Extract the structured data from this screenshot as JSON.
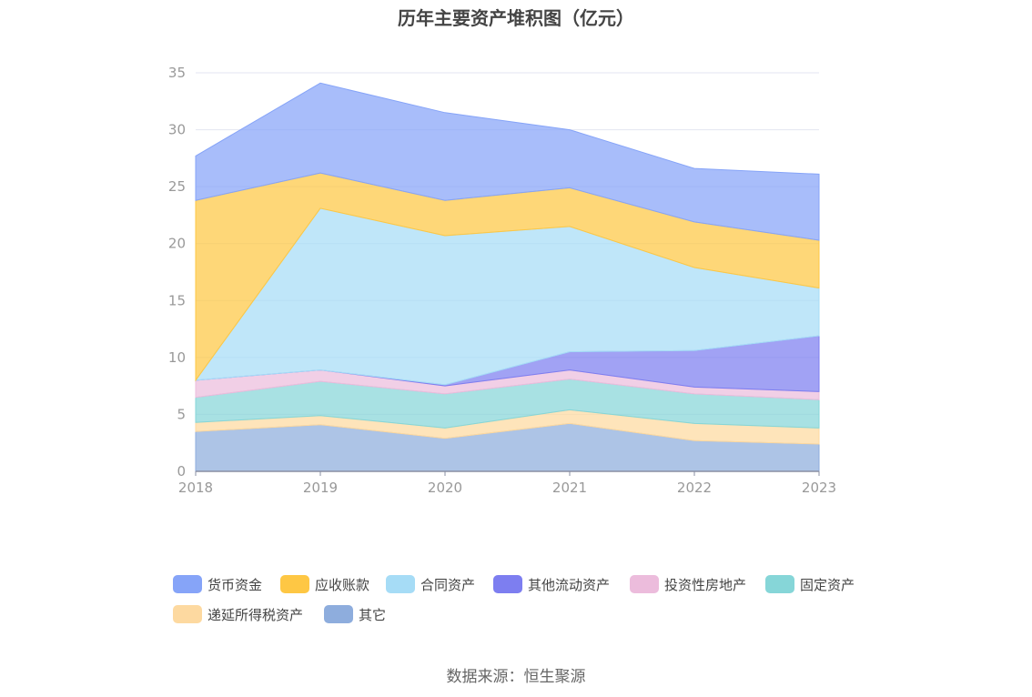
{
  "title": "历年主要资产堆积图（亿元）",
  "source": "数据来源：恒生聚源",
  "chart_data": {
    "type": "area",
    "stacked": true,
    "x": [
      "2018",
      "2019",
      "2020",
      "2021",
      "2022",
      "2023"
    ],
    "ylim": [
      0,
      35
    ],
    "yticks": [
      "0",
      "5",
      "10",
      "15",
      "20",
      "25",
      "30",
      "35"
    ],
    "grid": true,
    "legend_position": "bottom",
    "series": [
      {
        "name": "其它",
        "color": "#8eaddd",
        "values": [
          3.5,
          4.1,
          2.9,
          4.2,
          2.7,
          2.4
        ]
      },
      {
        "name": "递延所得税资产",
        "color": "#fdd9a0",
        "values": [
          0.8,
          0.8,
          0.9,
          1.2,
          1.5,
          1.4
        ]
      },
      {
        "name": "固定资产",
        "color": "#86d6d8",
        "values": [
          2.2,
          3.0,
          3.0,
          2.7,
          2.6,
          2.5
        ]
      },
      {
        "name": "投资性房地产",
        "color": "#ecbcdc",
        "values": [
          1.5,
          1.0,
          0.7,
          0.8,
          0.6,
          0.7
        ]
      },
      {
        "name": "其他流动资产",
        "color": "#7d7ef0",
        "values": [
          0.0,
          0.0,
          0.1,
          1.6,
          3.2,
          4.9
        ]
      },
      {
        "name": "合同资产",
        "color": "#a6dcf6",
        "values": [
          0.0,
          14.2,
          13.1,
          11.0,
          7.3,
          4.2
        ]
      },
      {
        "name": "应收账款",
        "color": "#fec744",
        "values": [
          15.8,
          3.1,
          3.1,
          3.4,
          4.0,
          4.2
        ]
      },
      {
        "name": "货币资金",
        "color": "#86a4f8",
        "values": [
          3.9,
          7.9,
          7.7,
          5.1,
          4.7,
          5.8
        ]
      }
    ],
    "legend_order": [
      "货币资金",
      "应收账款",
      "合同资产",
      "其他流动资产",
      "投资性房地产",
      "固定资产",
      "递延所得税资产",
      "其它"
    ]
  }
}
